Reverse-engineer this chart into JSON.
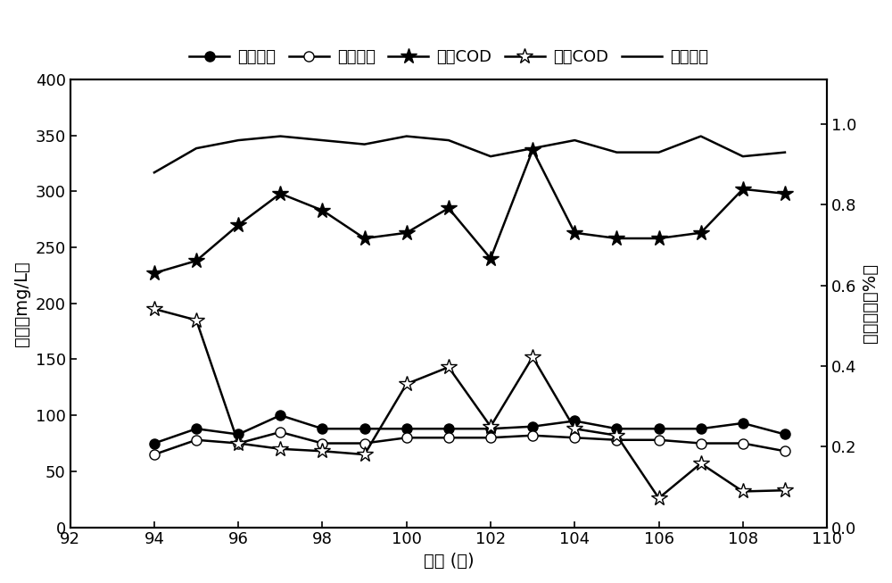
{
  "x": [
    94,
    95,
    96,
    97,
    98,
    99,
    100,
    101,
    102,
    103,
    104,
    105,
    106,
    107,
    108,
    109
  ],
  "jin_zong_dan": [
    75,
    88,
    83,
    100,
    88,
    88,
    88,
    88,
    88,
    90,
    95,
    88,
    88,
    88,
    93,
    83
  ],
  "chu_zong_dan": [
    65,
    78,
    75,
    85,
    75,
    75,
    80,
    80,
    80,
    82,
    80,
    78,
    78,
    75,
    75,
    68
  ],
  "jin_cod": [
    227,
    238,
    270,
    298,
    283,
    258,
    263,
    285,
    240,
    337,
    263,
    258,
    258,
    263,
    302,
    298
  ],
  "chu_cod": [
    195,
    185,
    75,
    70,
    68,
    65,
    128,
    143,
    90,
    152,
    88,
    82,
    26,
    57,
    32,
    33
  ],
  "ya_xiao_hua": [
    0.88,
    0.94,
    0.96,
    0.97,
    0.96,
    0.95,
    0.97,
    0.96,
    0.92,
    0.94,
    0.96,
    0.93,
    0.93,
    0.97,
    0.92,
    0.93
  ],
  "ylim_left": [
    0,
    400
  ],
  "ylim_right": [
    0.0,
    1.111
  ],
  "yticks_left": [
    0,
    50,
    100,
    150,
    200,
    250,
    300,
    350,
    400
  ],
  "yticks_right": [
    0.0,
    0.2,
    0.4,
    0.6,
    0.8,
    1.0
  ],
  "xlabel": "周期 (个)",
  "ylabel_left": "浓度（mg/L）",
  "ylabel_right": "亚确化率（%）",
  "legend_labels": [
    "进水总氮",
    "出水总氮",
    "进水COD",
    "出水COD",
    "亚确化率"
  ],
  "xlim": [
    92,
    110
  ],
  "xticks": [
    92,
    94,
    96,
    98,
    100,
    102,
    104,
    106,
    108,
    110
  ],
  "fig_width": 10.0,
  "fig_height": 6.53,
  "dpi": 100
}
